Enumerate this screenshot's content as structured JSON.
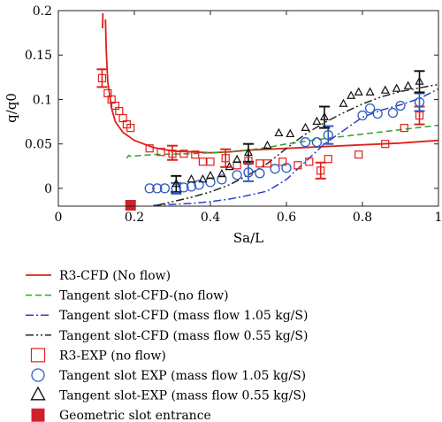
{
  "chart_data": {
    "type": "scatter",
    "xlabel": "Sa/L",
    "ylabel": "q/q0",
    "xlim": [
      0,
      1
    ],
    "ylim": [
      -0.02,
      0.2
    ],
    "xticks": [
      0,
      0.2,
      0.4,
      0.6,
      0.8,
      1
    ],
    "xtick_labels": [
      "0",
      "0.2",
      "0.4",
      "0.6",
      "0.8",
      "1"
    ],
    "yticks": [
      0,
      0.05,
      0.1,
      0.15,
      0.2
    ],
    "ytick_labels": [
      "0",
      "0.05",
      "0.1",
      "0.15",
      "0.2"
    ],
    "grid": false,
    "legend_placement": "below",
    "series": [
      {
        "name": "R3-CFD (No flow)",
        "kind": "line",
        "style": "solid",
        "color": "#e0201b",
        "x": [
          0.124,
          0.126,
          0.13,
          0.14,
          0.15,
          0.17,
          0.2,
          0.25,
          0.3,
          0.35,
          0.4,
          0.45,
          0.5,
          0.6,
          0.7,
          0.8,
          0.9,
          1.0
        ],
        "y": [
          0.19,
          0.155,
          0.12,
          0.09,
          0.075,
          0.063,
          0.054,
          0.046,
          0.042,
          0.041,
          0.04,
          0.041,
          0.043,
          0.045,
          0.047,
          0.049,
          0.051,
          0.054
        ]
      },
      {
        "name": "",
        "kind": "line",
        "style": "solid",
        "color": "#e0201b",
        "x": [
          0.117,
          0.117,
          0.116
        ],
        "y": [
          0.197,
          0.188,
          0.18
        ]
      },
      {
        "name": "Tangent slot-CFD-(no flow)",
        "kind": "line",
        "style": "dashed",
        "color": "#2ba32b",
        "x": [
          0.18,
          0.185,
          0.19,
          0.25,
          0.35,
          0.45,
          0.5,
          0.55,
          0.6,
          0.7,
          0.8,
          0.9,
          1.0
        ],
        "y": [
          0.034,
          0.037,
          0.036,
          0.038,
          0.039,
          0.041,
          0.043,
          0.046,
          0.05,
          0.056,
          0.061,
          0.066,
          0.071
        ]
      },
      {
        "name": "Tangent slot-CFD (mass flow 1.05 kg/S)",
        "kind": "line",
        "style": "dashdot",
        "color": "#2d3fc4",
        "x": [
          0.25,
          0.3,
          0.35,
          0.4,
          0.45,
          0.5,
          0.55,
          0.6,
          0.65,
          0.7,
          0.75,
          0.8,
          0.85,
          0.9,
          0.95,
          1.0
        ],
        "y": [
          -0.019,
          -0.018,
          -0.017,
          -0.015,
          -0.012,
          -0.008,
          -0.003,
          0.01,
          0.03,
          0.05,
          0.065,
          0.08,
          0.088,
          0.094,
          0.101,
          0.112
        ]
      },
      {
        "name": "Tangent slot-CFD (mass flow 0.55 kg/S)",
        "kind": "line",
        "style": "dashdotdot",
        "color": "#222222",
        "x": [
          0.26,
          0.3,
          0.35,
          0.4,
          0.45,
          0.5,
          0.55,
          0.6,
          0.65,
          0.7,
          0.75,
          0.8,
          0.85,
          0.9,
          0.95,
          1.0
        ],
        "y": [
          -0.019,
          -0.015,
          -0.01,
          -0.004,
          0.004,
          0.015,
          0.028,
          0.045,
          0.061,
          0.074,
          0.085,
          0.095,
          0.103,
          0.109,
          0.113,
          0.117
        ]
      },
      {
        "name": "R3-EXP (no flow)",
        "kind": "marker",
        "marker": "square",
        "color": "#e0201b",
        "x": [
          0.115,
          0.13,
          0.14,
          0.15,
          0.16,
          0.17,
          0.18,
          0.19,
          0.24,
          0.27,
          0.3,
          0.33,
          0.36,
          0.38,
          0.4,
          0.44,
          0.47,
          0.5,
          0.53,
          0.55,
          0.59,
          0.63,
          0.66,
          0.69,
          0.71,
          0.79,
          0.86,
          0.91,
          0.95
        ],
        "y": [
          0.124,
          0.107,
          0.1,
          0.093,
          0.087,
          0.079,
          0.072,
          0.068,
          0.045,
          0.041,
          0.039,
          0.039,
          0.038,
          0.03,
          0.03,
          0.034,
          0.026,
          0.031,
          0.028,
          0.028,
          0.03,
          0.026,
          0.03,
          0.02,
          0.033,
          0.038,
          0.05,
          0.068,
          0.082
        ]
      },
      {
        "name": "Tangent slot EXP (mass flow 1.05 kg/S)",
        "kind": "marker",
        "marker": "circle",
        "color": "#2d5bbf",
        "x": [
          0.24,
          0.26,
          0.28,
          0.31,
          0.33,
          0.35,
          0.37,
          0.4,
          0.43,
          0.47,
          0.5,
          0.53,
          0.57,
          0.6,
          0.65,
          0.68,
          0.71,
          0.8,
          0.82,
          0.84,
          0.88,
          0.9,
          0.95
        ],
        "y": [
          0,
          0,
          0,
          0,
          0.001,
          0.002,
          0.004,
          0.007,
          0.01,
          0.015,
          0.018,
          0.017,
          0.022,
          0.023,
          0.052,
          0.052,
          0.06,
          0.082,
          0.09,
          0.084,
          0.085,
          0.093,
          0.097
        ]
      },
      {
        "name": "Tangent slot-EXP (mass flow 0.55 kg/S)",
        "kind": "marker",
        "marker": "triangle",
        "color": "#111111",
        "x": [
          0.31,
          0.35,
          0.38,
          0.4,
          0.43,
          0.45,
          0.47,
          0.5,
          0.55,
          0.58,
          0.61,
          0.65,
          0.68,
          0.7,
          0.75,
          0.77,
          0.79,
          0.82,
          0.86,
          0.89,
          0.92,
          0.95
        ],
        "y": [
          0.005,
          0.01,
          0.01,
          0.014,
          0.016,
          0.024,
          0.032,
          0.04,
          0.048,
          0.062,
          0.061,
          0.068,
          0.075,
          0.08,
          0.095,
          0.104,
          0.108,
          0.108,
          0.11,
          0.112,
          0.115,
          0.12
        ]
      },
      {
        "name": "Geometric slot entrance",
        "kind": "marker",
        "marker": "filled-square",
        "color": "#d0202a",
        "x": [
          0.19
        ],
        "y": [
          -0.019
        ]
      }
    ],
    "error_bars": [
      {
        "color": "#e0201b",
        "x": 0.115,
        "y": 0.124,
        "err": 0.01
      },
      {
        "color": "#e0201b",
        "x": 0.3,
        "y": 0.04,
        "err": 0.008
      },
      {
        "color": "#e0201b",
        "x": 0.44,
        "y": 0.034,
        "err": 0.01
      },
      {
        "color": "#e0201b",
        "x": 0.69,
        "y": 0.02,
        "err": 0.009
      },
      {
        "color": "#e0201b",
        "x": 0.95,
        "y": 0.082,
        "err": 0.01
      },
      {
        "color": "#2d5bbf",
        "x": 0.5,
        "y": 0.018,
        "err": 0.01
      },
      {
        "color": "#2d5bbf",
        "x": 0.71,
        "y": 0.06,
        "err": 0.01
      },
      {
        "color": "#2d5bbf",
        "x": 0.95,
        "y": 0.097,
        "err": 0.01
      },
      {
        "color": "#2d5bbf",
        "x": 0.31,
        "y": 0.0,
        "err": 0.006
      },
      {
        "color": "#111111",
        "x": 0.31,
        "y": 0.005,
        "err": 0.009
      },
      {
        "color": "#111111",
        "x": 0.5,
        "y": 0.04,
        "err": 0.01
      },
      {
        "color": "#111111",
        "x": 0.7,
        "y": 0.08,
        "err": 0.012
      },
      {
        "color": "#111111",
        "x": 0.95,
        "y": 0.12,
        "err": 0.012
      }
    ]
  }
}
